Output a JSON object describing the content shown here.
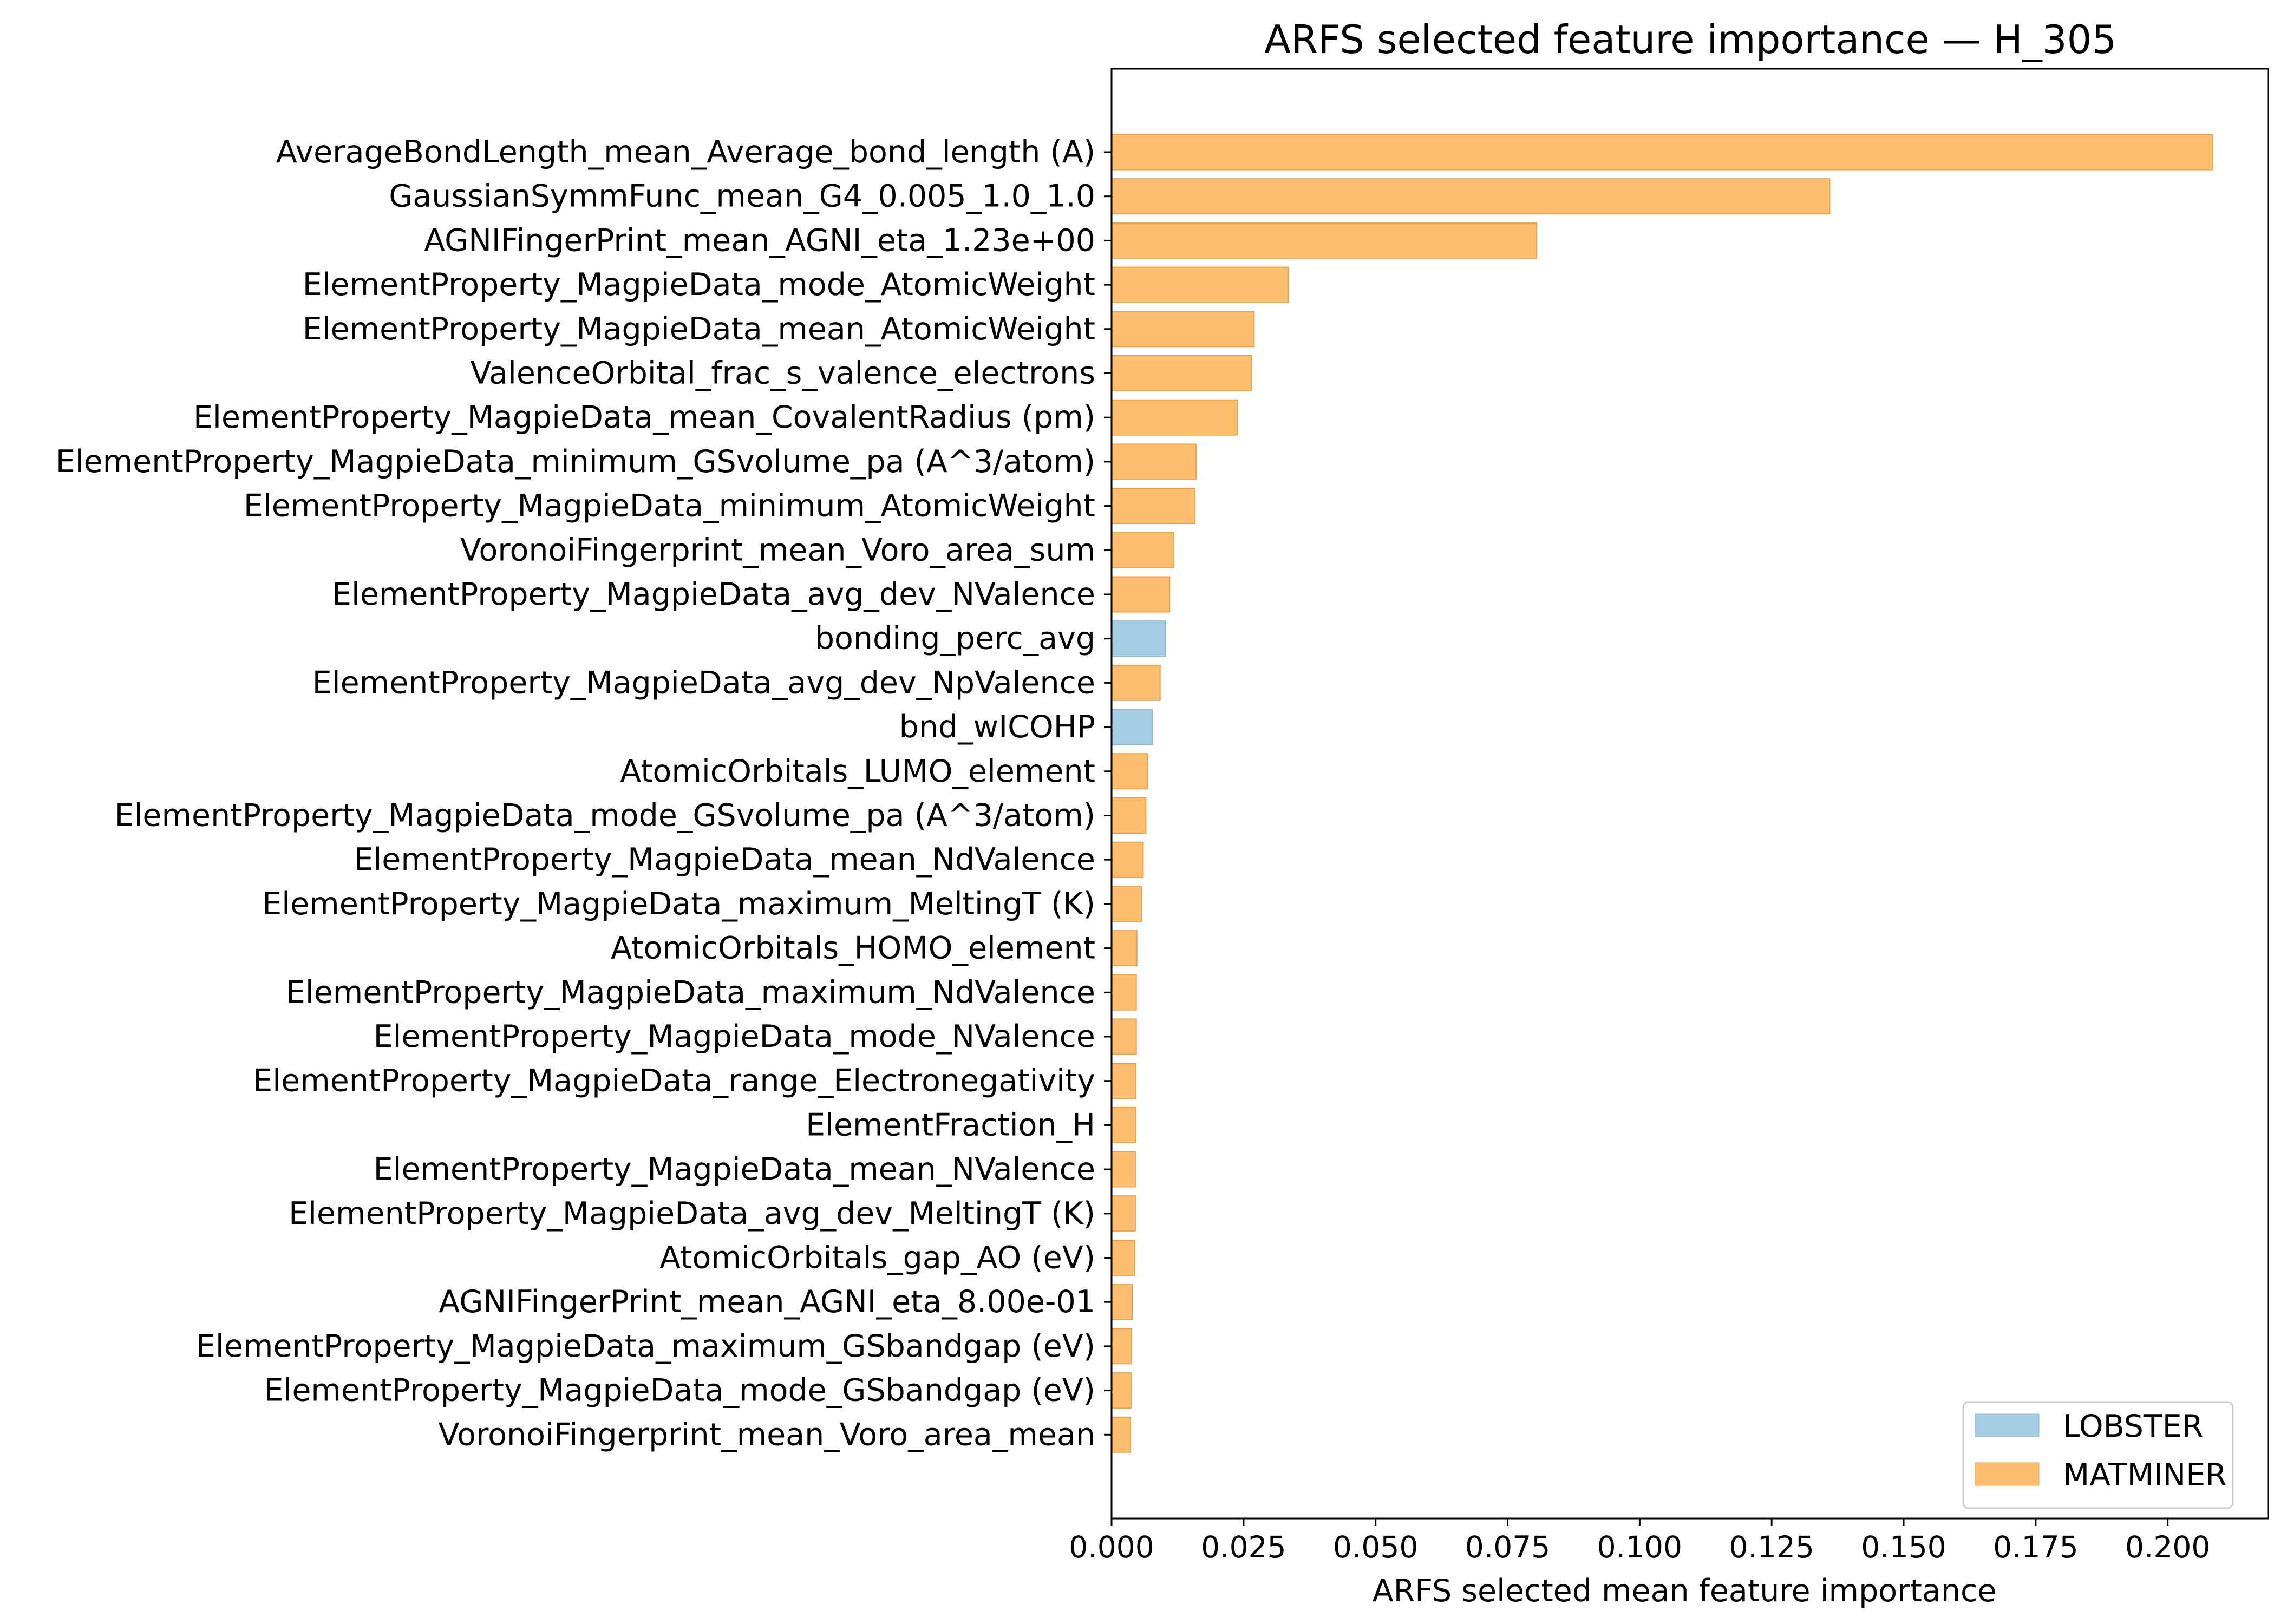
{
  "chart_data": {
    "type": "bar",
    "orientation": "horizontal",
    "title": "ARFS selected feature importance — H_305",
    "xlabel": "ARFS selected mean feature importance",
    "ylabel": "",
    "xlim": [
      0.0,
      0.219
    ],
    "xticks": [
      "0.000",
      "0.025",
      "0.050",
      "0.075",
      "0.100",
      "0.125",
      "0.150",
      "0.175",
      "0.200"
    ],
    "colors": {
      "LOBSTER": "#a6cee3",
      "MATMINER": "#fdbf6f"
    },
    "legend": {
      "position": "lower-right",
      "entries": [
        "LOBSTER",
        "MATMINER"
      ]
    },
    "features": [
      {
        "name": "AverageBondLength_mean_Average_bond_length (A)",
        "value": 0.2085,
        "source": "MATMINER"
      },
      {
        "name": "GaussianSymmFunc_mean_G4_0.005_1.0_1.0",
        "value": 0.136,
        "source": "MATMINER"
      },
      {
        "name": "AGNIFingerPrint_mean_AGNI_eta_1.23e+00",
        "value": 0.0805,
        "source": "MATMINER"
      },
      {
        "name": "ElementProperty_MagpieData_mode_AtomicWeight",
        "value": 0.0335,
        "source": "MATMINER"
      },
      {
        "name": "ElementProperty_MagpieData_mean_AtomicWeight",
        "value": 0.027,
        "source": "MATMINER"
      },
      {
        "name": "ValenceOrbital_frac_s_valence_electrons",
        "value": 0.0265,
        "source": "MATMINER"
      },
      {
        "name": "ElementProperty_MagpieData_mean_CovalentRadius (pm)",
        "value": 0.0238,
        "source": "MATMINER"
      },
      {
        "name": "ElementProperty_MagpieData_minimum_GSvolume_pa (A^3/atom)",
        "value": 0.016,
        "source": "MATMINER"
      },
      {
        "name": "ElementProperty_MagpieData_minimum_AtomicWeight",
        "value": 0.0158,
        "source": "MATMINER"
      },
      {
        "name": "VoronoiFingerprint_mean_Voro_area_sum",
        "value": 0.0118,
        "source": "MATMINER"
      },
      {
        "name": "ElementProperty_MagpieData_avg_dev_NValence",
        "value": 0.011,
        "source": "MATMINER"
      },
      {
        "name": "bonding_perc_avg",
        "value": 0.0102,
        "source": "LOBSTER"
      },
      {
        "name": "ElementProperty_MagpieData_avg_dev_NpValence",
        "value": 0.0092,
        "source": "MATMINER"
      },
      {
        "name": "bnd_wICOHP",
        "value": 0.0077,
        "source": "LOBSTER"
      },
      {
        "name": "AtomicOrbitals_LUMO_element",
        "value": 0.0068,
        "source": "MATMINER"
      },
      {
        "name": "ElementProperty_MagpieData_mode_GSvolume_pa (A^3/atom)",
        "value": 0.0065,
        "source": "MATMINER"
      },
      {
        "name": "ElementProperty_MagpieData_mean_NdValence",
        "value": 0.006,
        "source": "MATMINER"
      },
      {
        "name": "ElementProperty_MagpieData_maximum_MeltingT (K)",
        "value": 0.0057,
        "source": "MATMINER"
      },
      {
        "name": "AtomicOrbitals_HOMO_element",
        "value": 0.0048,
        "source": "MATMINER"
      },
      {
        "name": "ElementProperty_MagpieData_maximum_NdValence",
        "value": 0.0047,
        "source": "MATMINER"
      },
      {
        "name": "ElementProperty_MagpieData_mode_NValence",
        "value": 0.0047,
        "source": "MATMINER"
      },
      {
        "name": "ElementProperty_MagpieData_range_Electronegativity",
        "value": 0.0046,
        "source": "MATMINER"
      },
      {
        "name": "ElementFraction_H",
        "value": 0.0046,
        "source": "MATMINER"
      },
      {
        "name": "ElementProperty_MagpieData_mean_NValence",
        "value": 0.0045,
        "source": "MATMINER"
      },
      {
        "name": "ElementProperty_MagpieData_avg_dev_MeltingT (K)",
        "value": 0.0045,
        "source": "MATMINER"
      },
      {
        "name": "AtomicOrbitals_gap_AO (eV)",
        "value": 0.0044,
        "source": "MATMINER"
      },
      {
        "name": "AGNIFingerPrint_mean_AGNI_eta_8.00e-01",
        "value": 0.0039,
        "source": "MATMINER"
      },
      {
        "name": "ElementProperty_MagpieData_maximum_GSbandgap (eV)",
        "value": 0.0038,
        "source": "MATMINER"
      },
      {
        "name": "ElementProperty_MagpieData_mode_GSbandgap (eV)",
        "value": 0.0037,
        "source": "MATMINER"
      },
      {
        "name": "VoronoiFingerprint_mean_Voro_area_mean",
        "value": 0.0036,
        "source": "MATMINER"
      }
    ]
  }
}
